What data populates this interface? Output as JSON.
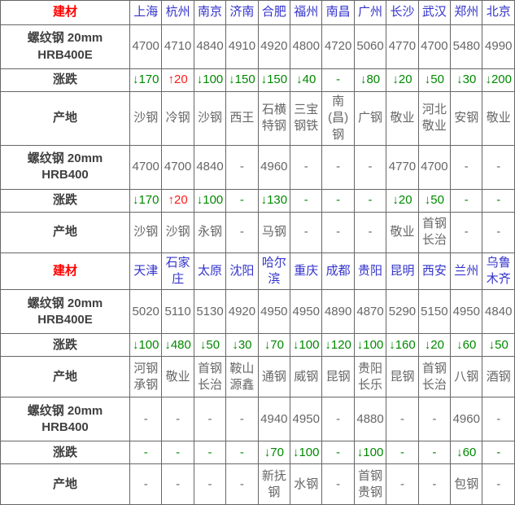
{
  "colors": {
    "border": "#666666",
    "header_red": "#ff0000",
    "city_blue": "#3333cc",
    "value_gray": "#666666",
    "label_dark": "#404040",
    "down_green": "#008800",
    "up_red": "#ff1a1a",
    "background": "#ffffff"
  },
  "chart_data": {
    "type": "table",
    "title": "建材价格表 (螺纹钢)",
    "sections": [
      {
        "header_label": "建材",
        "cities": [
          "上海",
          "杭州",
          "南京",
          "济南",
          "合肥",
          "福州",
          "南昌",
          "广州",
          "长沙",
          "武汉",
          "郑州",
          "北京"
        ],
        "rows": [
          {
            "label": "螺纹钢 20mm",
            "label2": "HRB400E",
            "type": "price",
            "values": [
              "4700",
              "4710",
              "4840",
              "4910",
              "4920",
              "4800",
              "4720",
              "5060",
              "4770",
              "4700",
              "5480",
              "4990"
            ]
          },
          {
            "label": "涨跌",
            "type": "change",
            "values": [
              "↓170",
              "↑20",
              "↓100",
              "↓150",
              "↓150",
              "↓40",
              "-",
              "↓80",
              "↓20",
              "↓50",
              "↓30",
              "↓200"
            ]
          },
          {
            "label": "产地",
            "type": "origin",
            "values": [
              "沙钢",
              "冷钢",
              "沙钢",
              "西王",
              "石横特钢",
              "三宝钢铁",
              "南(昌)钢",
              "广钢",
              "敬业",
              "河北敬业",
              "安钢",
              "敬业"
            ]
          },
          {
            "label": "螺纹钢 20mm",
            "label2": "HRB400",
            "type": "price",
            "values": [
              "4700",
              "4700",
              "4840",
              "-",
              "4960",
              "-",
              "-",
              "-",
              "4770",
              "4700",
              "-",
              "-"
            ]
          },
          {
            "label": "涨跌",
            "type": "change",
            "values": [
              "↓170",
              "↑20",
              "↓100",
              "-",
              "↓130",
              "-",
              "-",
              "-",
              "↓20",
              "↓50",
              "-",
              "-"
            ]
          },
          {
            "label": "产地",
            "type": "origin",
            "values": [
              "沙钢",
              "沙钢",
              "永钢",
              "-",
              "马钢",
              "-",
              "-",
              "-",
              "敬业",
              "首钢长治",
              "-",
              "-"
            ]
          }
        ]
      },
      {
        "header_label": "建材",
        "cities": [
          "天津",
          "石家庄",
          "太原",
          "沈阳",
          "哈尔滨",
          "重庆",
          "成都",
          "贵阳",
          "昆明",
          "西安",
          "兰州",
          "乌鲁木齐"
        ],
        "rows": [
          {
            "label": "螺纹钢 20mm",
            "label2": "HRB400E",
            "type": "price",
            "values": [
              "5020",
              "5110",
              "5130",
              "4920",
              "4950",
              "4950",
              "4890",
              "4870",
              "5290",
              "5150",
              "4950",
              "4840"
            ]
          },
          {
            "label": "涨跌",
            "type": "change",
            "values": [
              "↓100",
              "↓480",
              "↓50",
              "↓30",
              "↓70",
              "↓100",
              "↓120",
              "↓100",
              "↓160",
              "↓20",
              "↓60",
              "↓50"
            ]
          },
          {
            "label": "产地",
            "type": "origin",
            "values": [
              "河钢承钢",
              "敬业",
              "首钢长治",
              "鞍山源鑫",
              "通钢",
              "威钢",
              "昆钢",
              "贵阳长乐",
              "昆钢",
              "首钢长治",
              "八钢",
              "酒钢"
            ]
          },
          {
            "label": "螺纹钢 20mm",
            "label2": "HRB400",
            "type": "price",
            "values": [
              "-",
              "-",
              "-",
              "-",
              "4940",
              "4950",
              "-",
              "4880",
              "-",
              "-",
              "4960",
              "-"
            ]
          },
          {
            "label": "涨跌",
            "type": "change",
            "values": [
              "-",
              "-",
              "-",
              "-",
              "↓70",
              "↓100",
              "-",
              "↓100",
              "-",
              "-",
              "↓60",
              "-"
            ]
          },
          {
            "label": "产地",
            "type": "origin",
            "values": [
              "-",
              "-",
              "-",
              "-",
              "新抚钢",
              "水钢",
              "-",
              "首钢贵钢",
              "-",
              "-",
              "包钢",
              "-"
            ]
          }
        ]
      }
    ]
  }
}
